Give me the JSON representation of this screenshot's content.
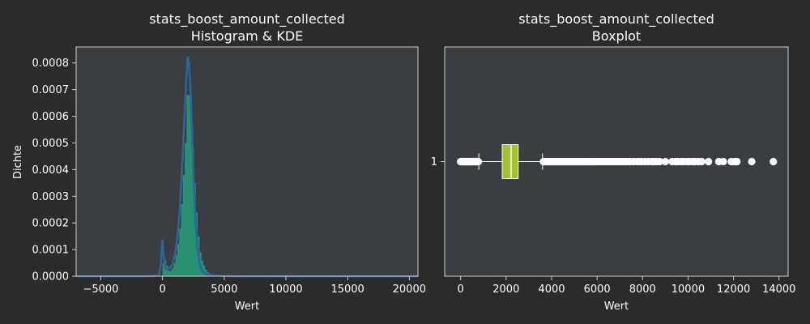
{
  "colors": {
    "background": "#2b2b2b",
    "panel": "#3a3d41",
    "frame": "#cfcfcf",
    "hist": "#26a17f",
    "kde": "#2f6496",
    "box": "#a4c12c",
    "median": "#6d8a1a",
    "outlier": "#ffffff",
    "text": "#ffffff"
  },
  "chart_data": [
    {
      "type": "histogram",
      "title": "stats_boost_amount_collected\nHistogram & KDE",
      "title_lines": [
        "stats_boost_amount_collected",
        "Histogram & KDE"
      ],
      "xlabel": "Wert",
      "ylabel": "Dichte",
      "xlim": [
        -7000,
        20700
      ],
      "ylim": [
        0,
        0.00086
      ],
      "xticks": [
        -5000,
        0,
        5000,
        10000,
        15000,
        20000
      ],
      "xtick_labels": [
        "−5000",
        "0",
        "5000",
        "10000",
        "15000",
        "20000"
      ],
      "yticks": [
        0,
        0.0001,
        0.0002,
        0.0003,
        0.0004,
        0.0005,
        0.0006,
        0.0007,
        0.0008
      ],
      "ytick_labels": [
        "0.0000",
        "0.0001",
        "0.0002",
        "0.0003",
        "0.0004",
        "0.0005",
        "0.0006",
        "0.0007",
        "0.0008"
      ],
      "grid": false,
      "bins": [
        {
          "x0": 0,
          "x1": 150,
          "y": 5e-05
        },
        {
          "x0": 150,
          "x1": 300,
          "y": 6e-05
        },
        {
          "x0": 300,
          "x1": 450,
          "y": 4e-05
        },
        {
          "x0": 450,
          "x1": 600,
          "y": 2e-05
        },
        {
          "x0": 600,
          "x1": 750,
          "y": 2e-05
        },
        {
          "x0": 750,
          "x1": 900,
          "y": 3e-05
        },
        {
          "x0": 900,
          "x1": 1050,
          "y": 5e-05
        },
        {
          "x0": 1050,
          "x1": 1200,
          "y": 8e-05
        },
        {
          "x0": 1200,
          "x1": 1350,
          "y": 0.00012
        },
        {
          "x0": 1350,
          "x1": 1500,
          "y": 0.00018
        },
        {
          "x0": 1500,
          "x1": 1650,
          "y": 0.00027
        },
        {
          "x0": 1650,
          "x1": 1800,
          "y": 0.00038
        },
        {
          "x0": 1800,
          "x1": 1950,
          "y": 0.0005
        },
        {
          "x0": 1950,
          "x1": 2100,
          "y": 0.00068
        },
        {
          "x0": 2100,
          "x1": 2250,
          "y": 0.00068
        },
        {
          "x0": 2250,
          "x1": 2400,
          "y": 0.0006
        },
        {
          "x0": 2400,
          "x1": 2550,
          "y": 0.00048
        },
        {
          "x0": 2550,
          "x1": 2700,
          "y": 0.00035
        },
        {
          "x0": 2700,
          "x1": 2850,
          "y": 0.00024
        },
        {
          "x0": 2850,
          "x1": 3000,
          "y": 0.00015
        },
        {
          "x0": 3000,
          "x1": 3150,
          "y": 9e-05
        },
        {
          "x0": 3150,
          "x1": 3300,
          "y": 6e-05
        },
        {
          "x0": 3300,
          "x1": 3450,
          "y": 4e-05
        },
        {
          "x0": 3450,
          "x1": 3600,
          "y": 2.5e-05
        },
        {
          "x0": 3600,
          "x1": 3750,
          "y": 1.5e-05
        },
        {
          "x0": 3750,
          "x1": 3900,
          "y": 1e-05
        },
        {
          "x0": 3900,
          "x1": 4200,
          "y": 6e-06
        },
        {
          "x0": 4200,
          "x1": 4600,
          "y": 4e-06
        },
        {
          "x0": 4600,
          "x1": 5200,
          "y": 2.5e-06
        },
        {
          "x0": 5200,
          "x1": 6000,
          "y": 1.5e-06
        }
      ],
      "kde": {
        "x": [
          -7000,
          -1500,
          -600,
          -300,
          -150,
          0,
          80,
          150,
          250,
          400,
          600,
          800,
          1000,
          1200,
          1400,
          1600,
          1800,
          1950,
          2050,
          2150,
          2250,
          2350,
          2450,
          2550,
          2700,
          2850,
          3000,
          3200,
          3500,
          4000,
          5000,
          6000,
          8000,
          12000,
          20700
        ],
        "y": [
          0,
          0,
          1e-06,
          5e-06,
          4e-05,
          0.000135,
          9e-05,
          5e-05,
          3e-05,
          2.5e-05,
          3e-05,
          4.5e-05,
          8e-05,
          0.00014,
          0.00025,
          0.00042,
          0.00062,
          0.00076,
          0.00082,
          0.0008,
          0.00072,
          0.0006,
          0.00046,
          0.00033,
          0.00019,
          0.0001,
          5e-05,
          2e-05,
          8e-06,
          3e-06,
          1e-06,
          0,
          0,
          0,
          0
        ]
      }
    },
    {
      "type": "boxplot",
      "title": "stats_boost_amount_collected\nBoxplot",
      "title_lines": [
        "stats_boost_amount_collected",
        "Boxplot"
      ],
      "xlabel": "Wert",
      "ylabel": "",
      "xlim": [
        -700,
        14400
      ],
      "xticks": [
        0,
        2000,
        4000,
        6000,
        8000,
        10000,
        12000,
        14000
      ],
      "xtick_labels": [
        "0",
        "2000",
        "4000",
        "6000",
        "8000",
        "10000",
        "12000",
        "14000"
      ],
      "ytick_labels": [
        "1"
      ],
      "grid": false,
      "orientation": "horizontal",
      "whisker_low": 800,
      "q1": 1830,
      "median": 2220,
      "q3": 2530,
      "whisker_high": 3600,
      "outliers": [
        0,
        30,
        60,
        90,
        120,
        150,
        180,
        210,
        240,
        270,
        300,
        330,
        360,
        390,
        420,
        450,
        480,
        510,
        540,
        570,
        600,
        630,
        660,
        690,
        720,
        750,
        780,
        3640,
        3700,
        3760,
        3820,
        3880,
        3940,
        4000,
        4060,
        4120,
        4180,
        4240,
        4300,
        4360,
        4420,
        4480,
        4540,
        4600,
        4660,
        4720,
        4780,
        4840,
        4900,
        4960,
        5020,
        5080,
        5140,
        5200,
        5260,
        5320,
        5380,
        5440,
        5500,
        5560,
        5620,
        5680,
        5740,
        5800,
        5860,
        5920,
        5980,
        6050,
        6120,
        6200,
        6280,
        6360,
        6450,
        6550,
        6650,
        6750,
        6850,
        6950,
        7050,
        7150,
        7250,
        7350,
        7450,
        7600,
        7750,
        7850,
        7950,
        8100,
        8250,
        8400,
        8500,
        8600,
        8750,
        9000,
        9300,
        9450,
        9550,
        9700,
        9800,
        9950,
        10050,
        10200,
        10300,
        10450,
        10600,
        10900,
        11350,
        11550,
        11900,
        12050,
        12150,
        12800,
        13750
      ]
    }
  ]
}
